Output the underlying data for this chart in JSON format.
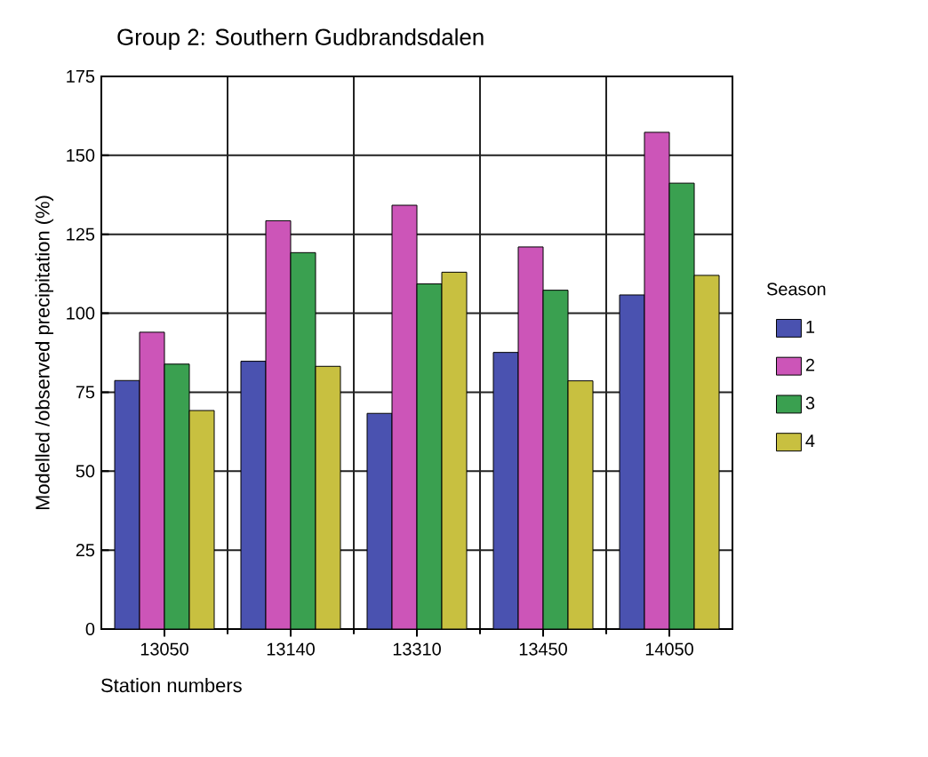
{
  "chart_data": {
    "type": "bar",
    "title": "Group 2: Southern Gudbrandsdalen",
    "xlabel": "Station numbers",
    "ylabel": "Modelled /observed precipitation (%)",
    "legend_title": "Season",
    "categories": [
      "13050",
      "13140",
      "13310",
      "13450",
      "14050"
    ],
    "series": [
      {
        "name": "1",
        "color": "#4a52b0",
        "values": [
          78.7,
          84.8,
          68.3,
          87.6,
          105.8
        ]
      },
      {
        "name": "2",
        "color": "#cc55b8",
        "values": [
          94,
          129.3,
          134.2,
          121,
          157.3
        ]
      },
      {
        "name": "3",
        "color": "#3aa050",
        "values": [
          83.9,
          119.2,
          109.3,
          107.3,
          141.2
        ]
      },
      {
        "name": "4",
        "color": "#c8c040",
        "values": [
          69.2,
          83.2,
          113,
          78.6,
          112
        ]
      }
    ],
    "ylim": [
      0,
      175
    ],
    "yticks": [
      0,
      25,
      50,
      75,
      100,
      125,
      150,
      175
    ],
    "grid": true,
    "legend": "right"
  }
}
